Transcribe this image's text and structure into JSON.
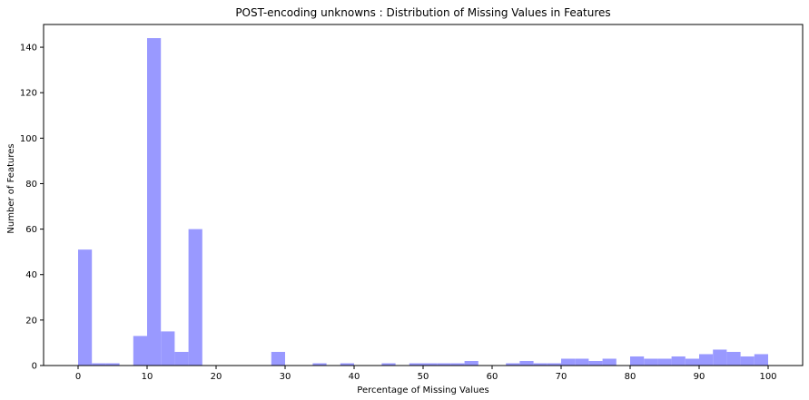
{
  "chart_data": {
    "type": "bar",
    "title": "POST-encoding unknowns : Distribution of Missing Values in Features",
    "xlabel": "Percentage of Missing Values",
    "ylabel": "Number of Features",
    "xlim": [
      -5,
      105
    ],
    "ylim": [
      0,
      150
    ],
    "xticks": [
      0,
      10,
      20,
      30,
      40,
      50,
      60,
      70,
      80,
      90,
      100
    ],
    "yticks": [
      0,
      20,
      40,
      60,
      80,
      100,
      120,
      140
    ],
    "bar_color": "#9999ff",
    "bin_width": 2,
    "bins": [
      {
        "x0": 0,
        "value": 51
      },
      {
        "x0": 2,
        "value": 1
      },
      {
        "x0": 4,
        "value": 1
      },
      {
        "x0": 8,
        "value": 13
      },
      {
        "x0": 10,
        "value": 144
      },
      {
        "x0": 12,
        "value": 15
      },
      {
        "x0": 14,
        "value": 6
      },
      {
        "x0": 16,
        "value": 60
      },
      {
        "x0": 28,
        "value": 6
      },
      {
        "x0": 34,
        "value": 1
      },
      {
        "x0": 38,
        "value": 1
      },
      {
        "x0": 44,
        "value": 1
      },
      {
        "x0": 48,
        "value": 1
      },
      {
        "x0": 50,
        "value": 1
      },
      {
        "x0": 52,
        "value": 1
      },
      {
        "x0": 54,
        "value": 1
      },
      {
        "x0": 56,
        "value": 2
      },
      {
        "x0": 62,
        "value": 1
      },
      {
        "x0": 64,
        "value": 2
      },
      {
        "x0": 66,
        "value": 1
      },
      {
        "x0": 68,
        "value": 1
      },
      {
        "x0": 70,
        "value": 3
      },
      {
        "x0": 72,
        "value": 3
      },
      {
        "x0": 74,
        "value": 2
      },
      {
        "x0": 76,
        "value": 3
      },
      {
        "x0": 80,
        "value": 4
      },
      {
        "x0": 82,
        "value": 3
      },
      {
        "x0": 84,
        "value": 3
      },
      {
        "x0": 86,
        "value": 4
      },
      {
        "x0": 88,
        "value": 3
      },
      {
        "x0": 90,
        "value": 5
      },
      {
        "x0": 92,
        "value": 7
      },
      {
        "x0": 94,
        "value": 6
      },
      {
        "x0": 96,
        "value": 4
      },
      {
        "x0": 98,
        "value": 5
      }
    ]
  }
}
